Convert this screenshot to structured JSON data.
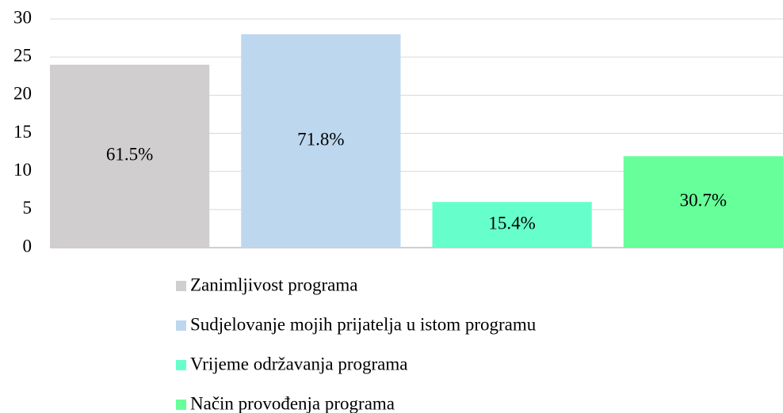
{
  "chart_data": {
    "type": "bar",
    "series": [
      {
        "name": "Zanimljivost programa",
        "color": "#d0cece",
        "values": [
          24
        ]
      },
      {
        "name": "Sudjelovanje mojih prijatelja u istom programu",
        "color": "#bdd7ee",
        "values": [
          28
        ]
      },
      {
        "name": "Vrijeme održavanja programa",
        "color": "#66ffcc",
        "values": [
          6
        ]
      },
      {
        "name": "Način provođenja programa",
        "color": "#66ff99",
        "values": [
          12
        ]
      }
    ],
    "annotations": [
      "61.5%",
      "71.8%",
      "15.4%",
      "30.7%"
    ],
    "ylim": [
      0,
      30
    ],
    "yticks": [
      0,
      5,
      10,
      15,
      20,
      25,
      30
    ],
    "grid": true,
    "legend": "bottom"
  }
}
